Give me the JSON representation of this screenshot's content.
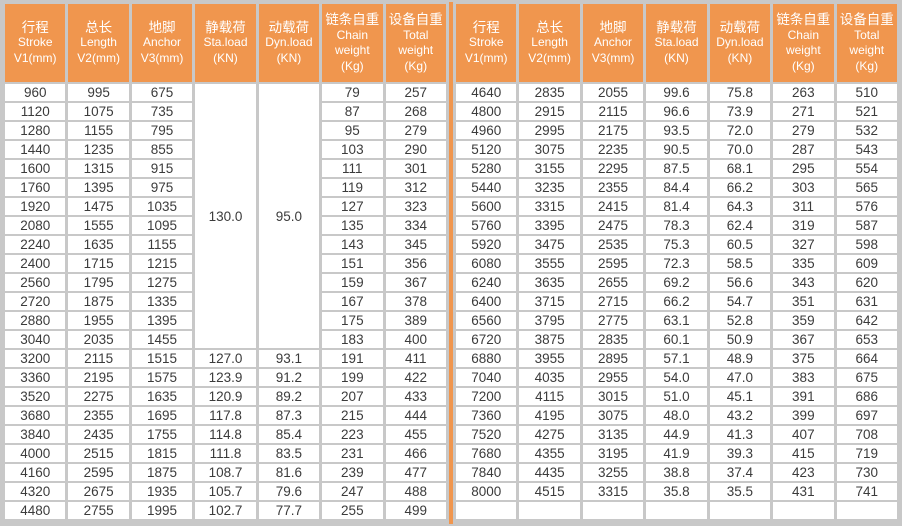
{
  "table": {
    "columns": [
      {
        "key": "stroke",
        "lines": [
          "行程",
          "Stroke",
          "V1(mm)"
        ]
      },
      {
        "key": "length",
        "lines": [
          "总长",
          "Length",
          "V2(mm)"
        ]
      },
      {
        "key": "anchor",
        "lines": [
          "地脚",
          "Anchor",
          "V3(mm)"
        ]
      },
      {
        "key": "sta-load",
        "lines": [
          "静载荷",
          "Sta.load",
          "(KN)"
        ]
      },
      {
        "key": "dyn-load",
        "lines": [
          "动载荷",
          "Dyn.load",
          "(KN)"
        ]
      },
      {
        "key": "chain-weight",
        "lines": [
          "链条自重",
          "Chain",
          "weight",
          "(Kg)"
        ]
      },
      {
        "key": "total-weight",
        "lines": [
          "设备自重",
          "Total",
          "weight",
          "(Kg)"
        ]
      }
    ],
    "left": {
      "merged": {
        "sta_load": "130.0",
        "dyn_load": "95.0",
        "row_span": 14
      },
      "rows": [
        [
          "960",
          "995",
          "675",
          null,
          null,
          "79",
          "257"
        ],
        [
          "1120",
          "1075",
          "735",
          null,
          null,
          "87",
          "268"
        ],
        [
          "1280",
          "1155",
          "795",
          null,
          null,
          "95",
          "279"
        ],
        [
          "1440",
          "1235",
          "855",
          null,
          null,
          "103",
          "290"
        ],
        [
          "1600",
          "1315",
          "915",
          null,
          null,
          "111",
          "301"
        ],
        [
          "1760",
          "1395",
          "975",
          null,
          null,
          "119",
          "312"
        ],
        [
          "1920",
          "1475",
          "1035",
          null,
          null,
          "127",
          "323"
        ],
        [
          "2080",
          "1555",
          "1095",
          null,
          null,
          "135",
          "334"
        ],
        [
          "2240",
          "1635",
          "1155",
          null,
          null,
          "143",
          "345"
        ],
        [
          "2400",
          "1715",
          "1215",
          null,
          null,
          "151",
          "356"
        ],
        [
          "2560",
          "1795",
          "1275",
          null,
          null,
          "159",
          "367"
        ],
        [
          "2720",
          "1875",
          "1335",
          null,
          null,
          "167",
          "378"
        ],
        [
          "2880",
          "1955",
          "1395",
          null,
          null,
          "175",
          "389"
        ],
        [
          "3040",
          "2035",
          "1455",
          null,
          null,
          "183",
          "400"
        ],
        [
          "3200",
          "2115",
          "1515",
          "127.0",
          "93.1",
          "191",
          "411"
        ],
        [
          "3360",
          "2195",
          "1575",
          "123.9",
          "91.2",
          "199",
          "422"
        ],
        [
          "3520",
          "2275",
          "1635",
          "120.9",
          "89.2",
          "207",
          "433"
        ],
        [
          "3680",
          "2355",
          "1695",
          "117.8",
          "87.3",
          "215",
          "444"
        ],
        [
          "3840",
          "2435",
          "1755",
          "114.8",
          "85.4",
          "223",
          "455"
        ],
        [
          "4000",
          "2515",
          "1815",
          "111.8",
          "83.5",
          "231",
          "466"
        ],
        [
          "4160",
          "2595",
          "1875",
          "108.7",
          "81.6",
          "239",
          "477"
        ],
        [
          "4320",
          "2675",
          "1935",
          "105.7",
          "79.6",
          "247",
          "488"
        ],
        [
          "4480",
          "2755",
          "1995",
          "102.7",
          "77.7",
          "255",
          "499"
        ]
      ]
    },
    "right": {
      "rows": [
        [
          "4640",
          "2835",
          "2055",
          "99.6",
          "75.8",
          "263",
          "510"
        ],
        [
          "4800",
          "2915",
          "2115",
          "96.6",
          "73.9",
          "271",
          "521"
        ],
        [
          "4960",
          "2995",
          "2175",
          "93.5",
          "72.0",
          "279",
          "532"
        ],
        [
          "5120",
          "3075",
          "2235",
          "90.5",
          "70.0",
          "287",
          "543"
        ],
        [
          "5280",
          "3155",
          "2295",
          "87.5",
          "68.1",
          "295",
          "554"
        ],
        [
          "5440",
          "3235",
          "2355",
          "84.4",
          "66.2",
          "303",
          "565"
        ],
        [
          "5600",
          "3315",
          "2415",
          "81.4",
          "64.3",
          "311",
          "576"
        ],
        [
          "5760",
          "3395",
          "2475",
          "78.3",
          "62.4",
          "319",
          "587"
        ],
        [
          "5920",
          "3475",
          "2535",
          "75.3",
          "60.5",
          "327",
          "598"
        ],
        [
          "6080",
          "3555",
          "2595",
          "72.3",
          "58.5",
          "335",
          "609"
        ],
        [
          "6240",
          "3635",
          "2655",
          "69.2",
          "56.6",
          "343",
          "620"
        ],
        [
          "6400",
          "3715",
          "2715",
          "66.2",
          "54.7",
          "351",
          "631"
        ],
        [
          "6560",
          "3795",
          "2775",
          "63.1",
          "52.8",
          "359",
          "642"
        ],
        [
          "6720",
          "3875",
          "2835",
          "60.1",
          "50.9",
          "367",
          "653"
        ],
        [
          "6880",
          "3955",
          "2895",
          "57.1",
          "48.9",
          "375",
          "664"
        ],
        [
          "7040",
          "4035",
          "2955",
          "54.0",
          "47.0",
          "383",
          "675"
        ],
        [
          "7200",
          "4115",
          "3015",
          "51.0",
          "45.1",
          "391",
          "686"
        ],
        [
          "7360",
          "4195",
          "3075",
          "48.0",
          "43.2",
          "399",
          "697"
        ],
        [
          "7520",
          "4275",
          "3135",
          "44.9",
          "41.3",
          "407",
          "708"
        ],
        [
          "7680",
          "4355",
          "3195",
          "41.9",
          "39.3",
          "415",
          "719"
        ],
        [
          "7840",
          "4435",
          "3255",
          "38.8",
          "37.4",
          "423",
          "730"
        ],
        [
          "8000",
          "4515",
          "3315",
          "35.8",
          "35.5",
          "431",
          "741"
        ],
        [
          "",
          "",
          "",
          "",
          "",
          "",
          ""
        ]
      ]
    },
    "colors": {
      "header_bg": "#f0964e",
      "divider": "#f0964e",
      "grid": "#c8c8c8",
      "cell_bg": "#ffffff",
      "header_text": "#ffffff",
      "cell_text": "#3b3b3b"
    }
  }
}
